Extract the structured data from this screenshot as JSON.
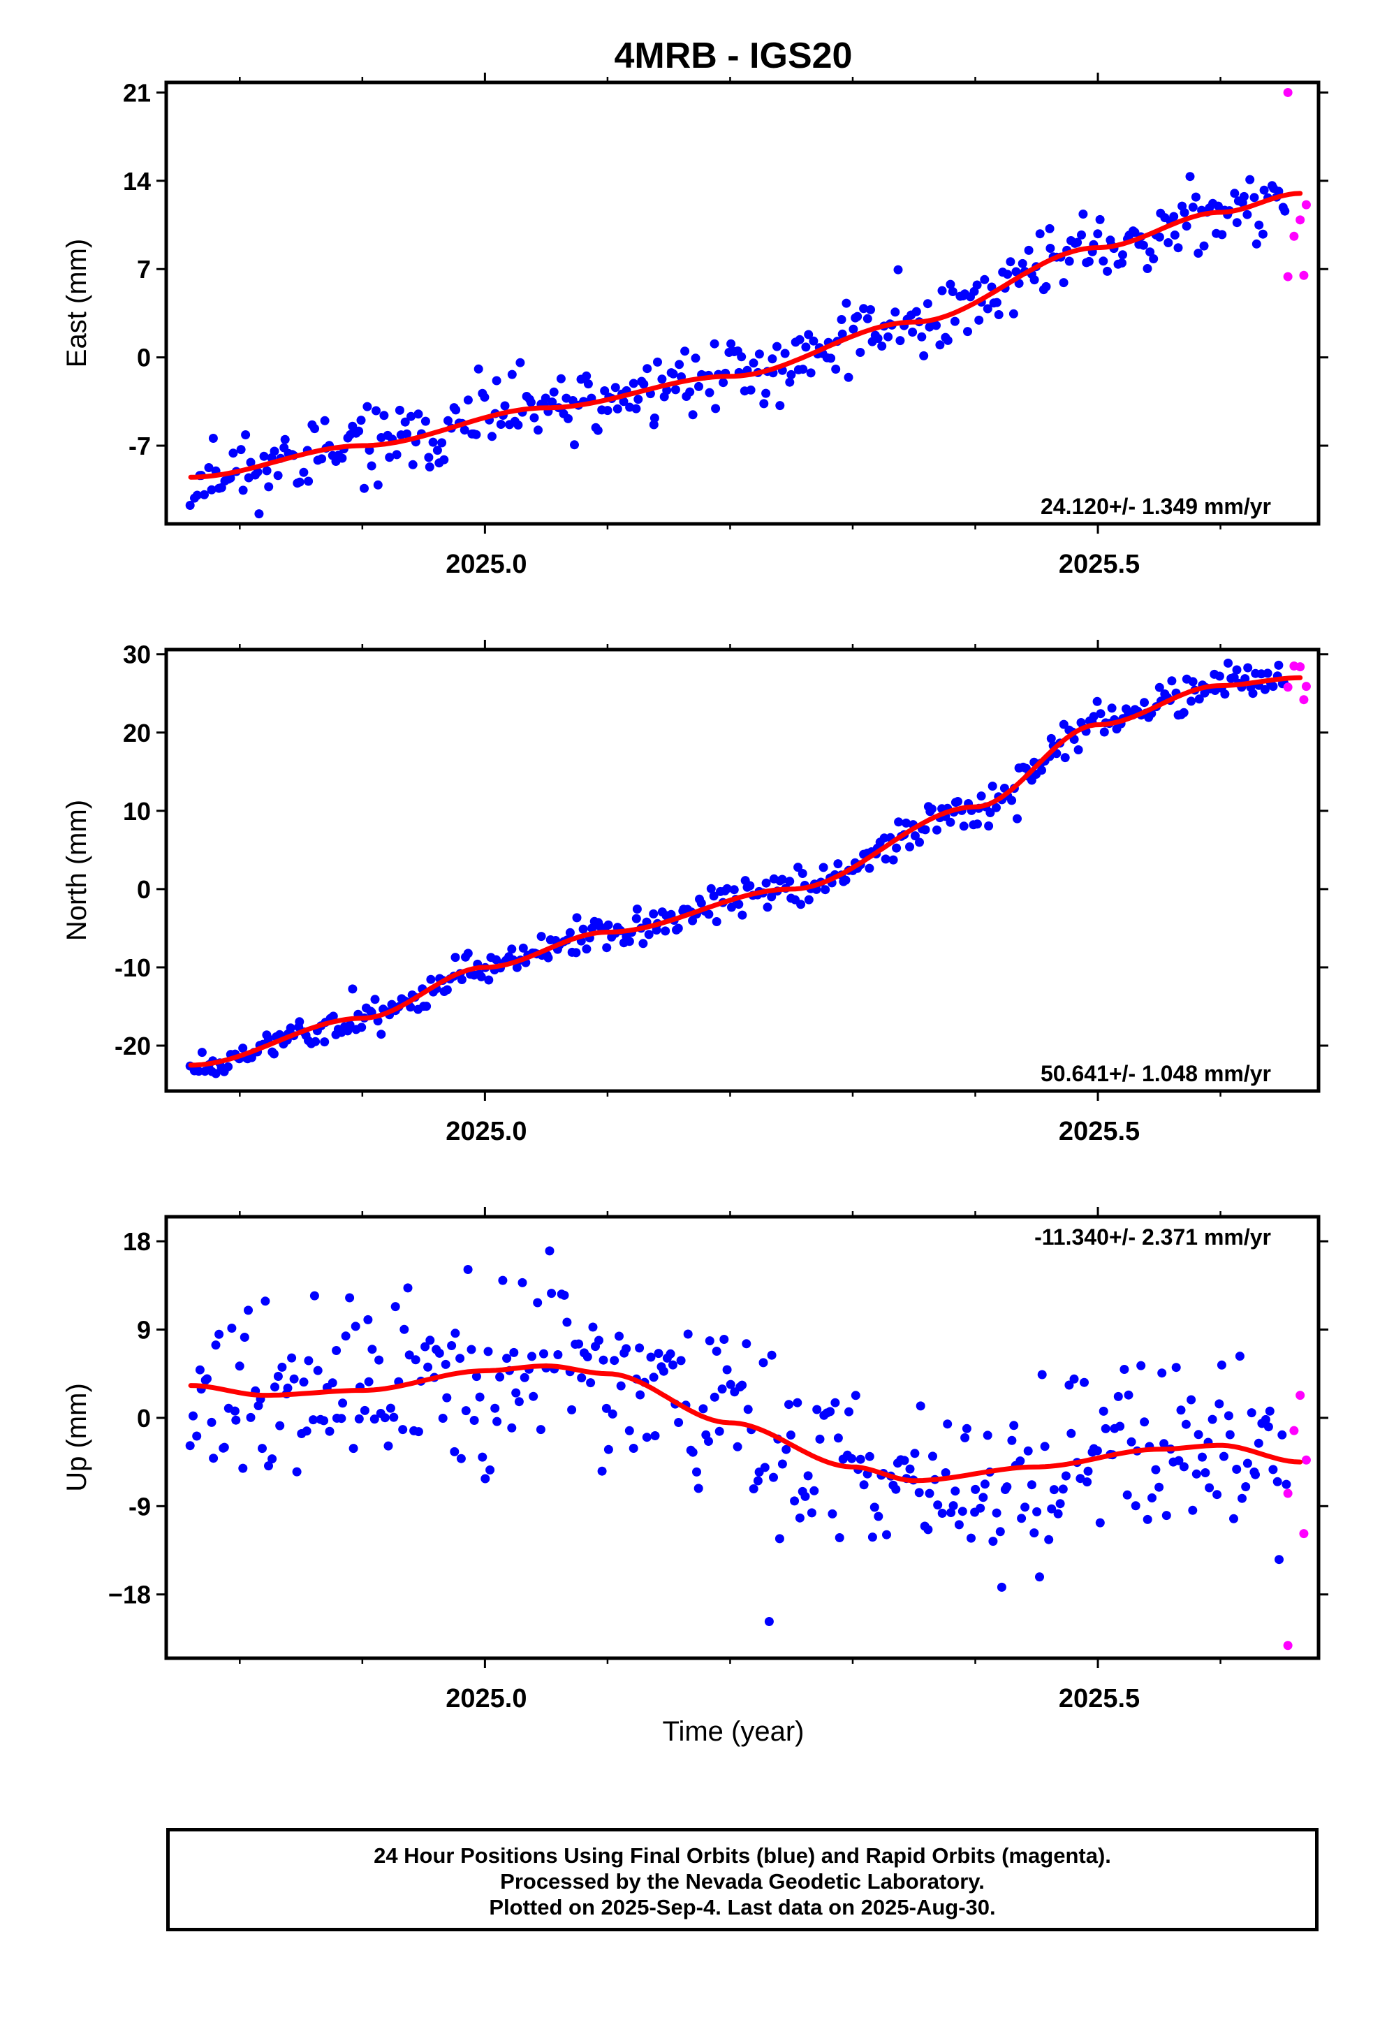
{
  "title": "4MRB - IGS20",
  "xlabel": "Time (year)",
  "caption": [
    "24 Hour Positions Using Final Orbits (blue) and Rapid Orbits (magenta).",
    "Processed by the Nevada Geodetic Laboratory.",
    "Plotted on 2025-Sep-4. Last data on 2025-Aug-30."
  ],
  "colors": {
    "final": "#0000ff",
    "rapid": "#ff00ff",
    "fit": "#ff0000",
    "frame": "#000000"
  },
  "chart_data": [
    {
      "type": "scatter",
      "ylabel": "East (mm)",
      "rate_text": "24.120+/- 1.349 mm/yr",
      "xlim": [
        2024.74,
        2025.68
      ],
      "ylim": [
        -13.2,
        21.8
      ],
      "yticks": [
        -7,
        0,
        7,
        14,
        21
      ],
      "ytick_labels": [
        "-7",
        "0",
        "7",
        "14",
        "21"
      ],
      "xticks": [
        2025.0,
        2025.5
      ],
      "xtick_labels": [
        "2025.0",
        "2025.5"
      ],
      "xminor": [
        2024.8,
        2024.9,
        2025.1,
        2025.2,
        2025.3,
        2025.4,
        2025.6
      ],
      "seed": 11,
      "trend": {
        "start": 2024.76,
        "end": 2025.665,
        "anchors": [
          [
            2024.76,
            -9.5
          ],
          [
            2024.9,
            -7.0
          ],
          [
            2025.05,
            -4.0
          ],
          [
            2025.2,
            -1.5
          ],
          [
            2025.35,
            2.8
          ],
          [
            2025.5,
            8.7
          ],
          [
            2025.6,
            11.5
          ],
          [
            2025.665,
            13.0
          ]
        ],
        "noise": 2.0
      },
      "rapid": [
        [
          2025.655,
          21.0
        ],
        [
          2025.66,
          9.6
        ],
        [
          2025.665,
          10.9
        ],
        [
          2025.67,
          12.1
        ],
        [
          2025.655,
          6.4
        ],
        [
          2025.668,
          6.5
        ]
      ]
    },
    {
      "type": "scatter",
      "ylabel": "North (mm)",
      "rate_text": "50.641+/- 1.048 mm/yr",
      "xlim": [
        2024.74,
        2025.68
      ],
      "ylim": [
        -25.8,
        30.6
      ],
      "yticks": [
        -20,
        -10,
        0,
        10,
        20,
        30
      ],
      "ytick_labels": [
        "-20",
        "-10",
        "0",
        "10",
        "20",
        "30"
      ],
      "xticks": [
        2025.0,
        2025.5
      ],
      "xtick_labels": [
        "2025.0",
        "2025.5"
      ],
      "xminor": [
        2024.8,
        2024.9,
        2025.1,
        2025.2,
        2025.3,
        2025.4,
        2025.6
      ],
      "seed": 23,
      "trend": {
        "start": 2024.76,
        "end": 2025.665,
        "anchors": [
          [
            2024.76,
            -22.5
          ],
          [
            2024.9,
            -16.5
          ],
          [
            2025.0,
            -10.0
          ],
          [
            2025.1,
            -5.5
          ],
          [
            2025.25,
            0.0
          ],
          [
            2025.4,
            10.5
          ],
          [
            2025.5,
            21.0
          ],
          [
            2025.6,
            26.0
          ],
          [
            2025.665,
            27.0
          ]
        ],
        "noise": 1.6
      },
      "rapid": [
        [
          2025.655,
          25.8
        ],
        [
          2025.66,
          28.5
        ],
        [
          2025.665,
          28.4
        ],
        [
          2025.67,
          25.9
        ],
        [
          2025.668,
          24.2
        ]
      ]
    },
    {
      "type": "scatter",
      "ylabel": "Up (mm)",
      "rate_text": "-11.340+/- 2.371 mm/yr",
      "xlim": [
        2024.74,
        2025.68
      ],
      "ylim": [
        -24.5,
        20.5
      ],
      "yticks": [
        -18,
        -9,
        0,
        9,
        18
      ],
      "ytick_labels": [
        "−18",
        "-9",
        "0",
        "9",
        "18"
      ],
      "xticks": [
        2025.0,
        2025.5
      ],
      "xtick_labels": [
        "2025.0",
        "2025.5"
      ],
      "xminor": [
        2024.8,
        2024.9,
        2025.1,
        2025.2,
        2025.3,
        2025.4,
        2025.6
      ],
      "seed": 37,
      "trend": {
        "start": 2024.76,
        "end": 2025.665,
        "anchors": [
          [
            2024.76,
            3.3
          ],
          [
            2024.82,
            2.3
          ],
          [
            2024.9,
            2.8
          ],
          [
            2025.0,
            4.8
          ],
          [
            2025.05,
            5.3
          ],
          [
            2025.1,
            4.5
          ],
          [
            2025.2,
            -0.5
          ],
          [
            2025.3,
            -5.0
          ],
          [
            2025.35,
            -6.4
          ],
          [
            2025.45,
            -5.0
          ],
          [
            2025.55,
            -3.2
          ],
          [
            2025.6,
            -2.8
          ],
          [
            2025.665,
            -4.5
          ]
        ],
        "noise": 6.5
      },
      "rapid": [
        [
          2025.655,
          -23.2
        ],
        [
          2025.66,
          -1.3
        ],
        [
          2025.665,
          2.3
        ],
        [
          2025.67,
          -4.3
        ],
        [
          2025.668,
          -11.8
        ],
        [
          2025.655,
          -7.7
        ]
      ]
    }
  ]
}
